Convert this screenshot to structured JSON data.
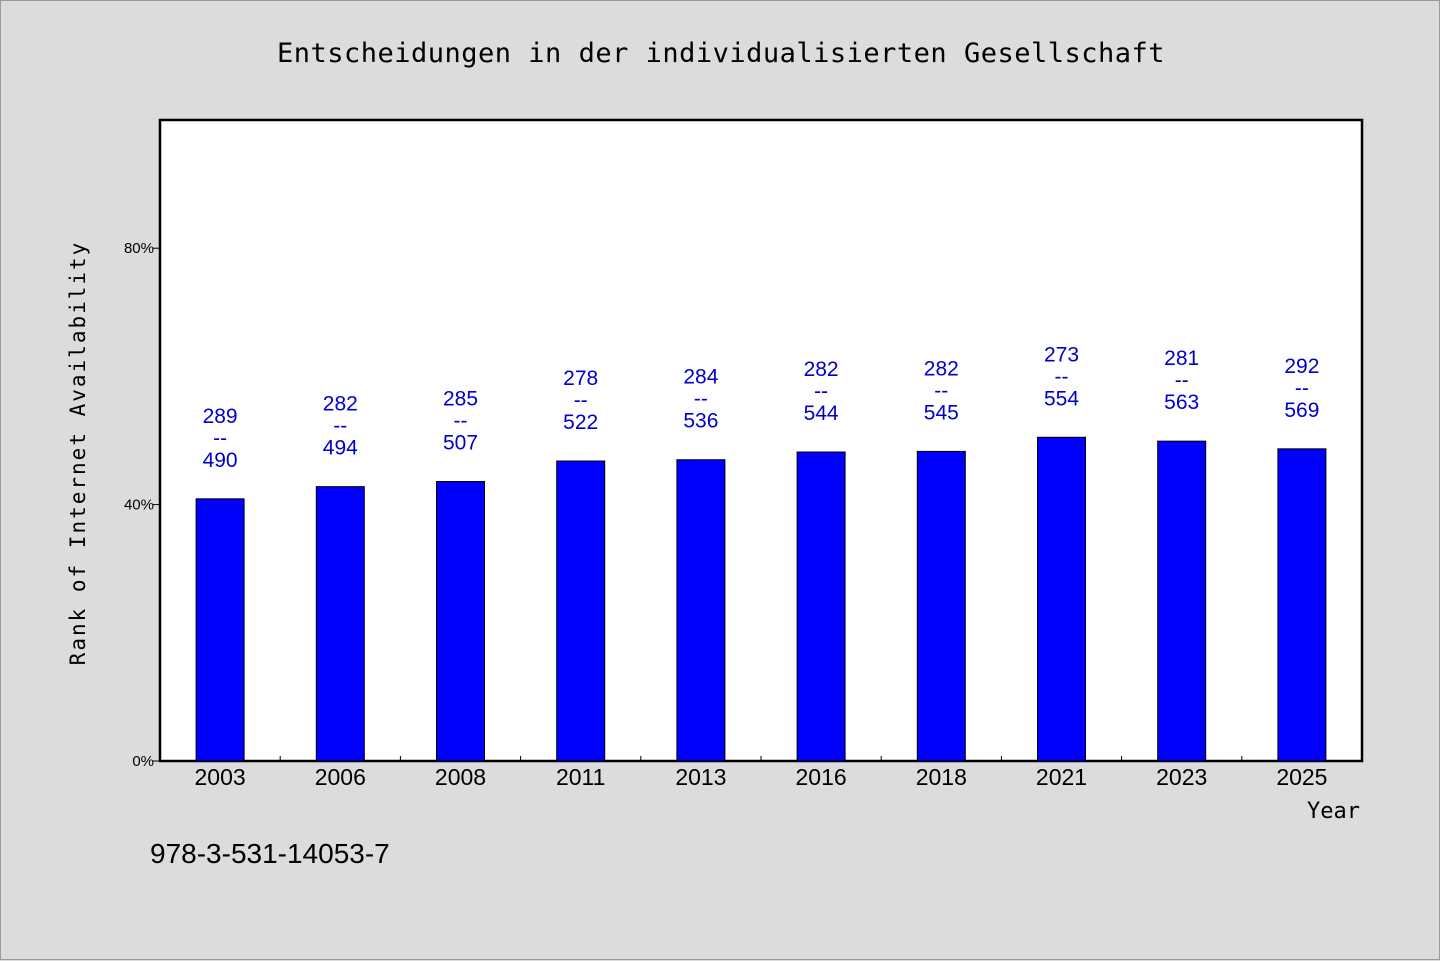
{
  "chart_data": {
    "type": "bar",
    "title": "Entscheidungen in der individualisierten Gesellschaft",
    "xlabel": "Year",
    "ylabel": "Rank of Internet Availability",
    "categories": [
      "2003",
      "2006",
      "2008",
      "2011",
      "2013",
      "2016",
      "2018",
      "2021",
      "2023",
      "2025"
    ],
    "values": [
      40.9,
      42.8,
      43.6,
      46.8,
      47.0,
      48.2,
      48.3,
      50.5,
      49.9,
      48.7
    ],
    "data_labels": [
      [
        "289",
        "--",
        "490"
      ],
      [
        "282",
        "--",
        "494"
      ],
      [
        "285",
        "--",
        "507"
      ],
      [
        "278",
        "--",
        "522"
      ],
      [
        "284",
        "--",
        "536"
      ],
      [
        "282",
        "--",
        "544"
      ],
      [
        "282",
        "--",
        "545"
      ],
      [
        "273",
        "--",
        "554"
      ],
      [
        "281",
        "--",
        "563"
      ],
      [
        "292",
        "--",
        "569"
      ]
    ],
    "ylim": [
      0,
      100
    ],
    "yticks": [
      {
        "value": 0,
        "label": "0%"
      },
      {
        "value": 40,
        "label": "40%"
      },
      {
        "value": 80,
        "label": "80%"
      }
    ],
    "bar_color": "#0000ff",
    "label_color": "#0000cc",
    "grid": false,
    "legend": "none"
  },
  "footnote": "978-3-531-14053-7"
}
